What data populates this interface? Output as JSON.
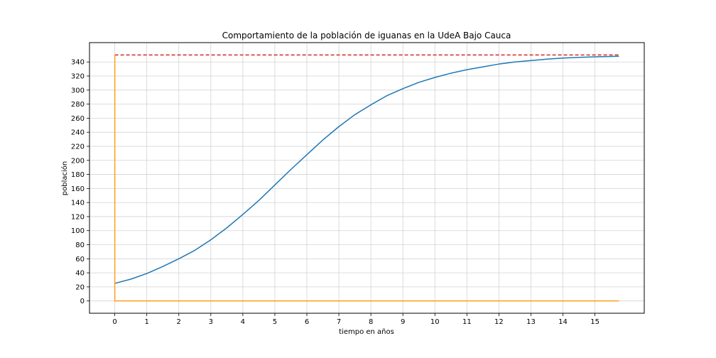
{
  "chart_data": {
    "type": "line",
    "title": "Comportamiento de la población de iguanas en la UdeA Bajo Cauca",
    "xlabel": "tiempo en años",
    "ylabel": "población",
    "xlim": [
      -0.79,
      16.54
    ],
    "ylim": [
      -17.5,
      367.5
    ],
    "x_ticks": [
      0,
      1,
      2,
      3,
      4,
      5,
      6,
      7,
      8,
      9,
      10,
      11,
      12,
      13,
      14,
      15
    ],
    "y_ticks": [
      0,
      20,
      40,
      60,
      80,
      100,
      120,
      140,
      160,
      180,
      200,
      220,
      240,
      260,
      280,
      300,
      320,
      340
    ],
    "grid": true,
    "colors": {
      "population": "#1f77b4",
      "capacity": "#d62728",
      "reference": "#ff9f1c"
    },
    "series": [
      {
        "style": "solid",
        "color": "#1f77b4",
        "x": [
          0,
          0.5,
          1,
          1.5,
          2,
          2.5,
          3,
          3.5,
          4,
          4.5,
          5,
          5.5,
          6,
          6.5,
          7,
          7.5,
          8,
          8.5,
          9,
          9.5,
          10,
          10.5,
          11,
          11.5,
          12,
          12.5,
          13,
          13.5,
          14,
          14.5,
          15,
          15.5,
          15.75
        ],
        "y": [
          25,
          31,
          39,
          49,
          60,
          72,
          87,
          104,
          123,
          143,
          165,
          187,
          208,
          229,
          248,
          265,
          279,
          292,
          302,
          311,
          318,
          324,
          329,
          333,
          337,
          340,
          342,
          344,
          345.5,
          346.5,
          347.3,
          347.8,
          348
        ]
      },
      {
        "style": "dashed",
        "color": "#d62728",
        "x": [
          0,
          15.75
        ],
        "y": [
          350,
          350
        ]
      },
      {
        "style": "solid",
        "color": "#ff9f1c",
        "x": [
          0,
          0,
          15.75
        ],
        "y": [
          350,
          0,
          0
        ]
      }
    ]
  }
}
